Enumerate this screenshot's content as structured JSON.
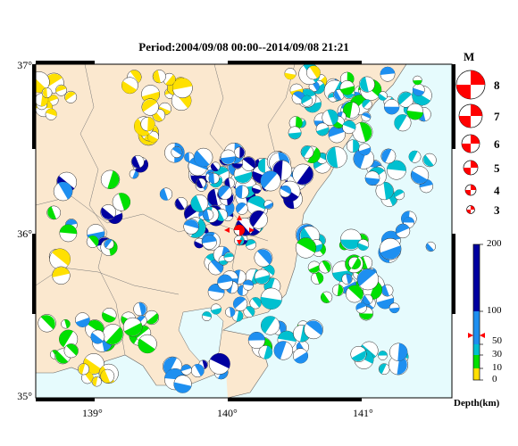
{
  "title": "Period:2004/09/08 00:00--2014/09/08 21:21",
  "lat_labels": [
    "37°",
    "36°",
    "35°"
  ],
  "lon_labels": [
    "139°",
    "140°",
    "141°"
  ],
  "magnitude_legend": {
    "header": "M",
    "values": [
      "8",
      "7",
      "6",
      "5",
      "4",
      "3"
    ]
  },
  "depth_scale": {
    "title": "Depth(km)",
    "ticks": [
      "200",
      "100",
      "50",
      "30",
      "10",
      "0"
    ],
    "colors": {
      "shallow": "#ffe000",
      "mid": "#00e000",
      "middeep": "#00c0d0",
      "deep": "#1e8ff0",
      "deepest": "#0000a0"
    }
  },
  "colors": {
    "land": "#fbe8cf",
    "sea": "#e6fbfd",
    "mechanism_highlight": "#ff0000"
  }
}
